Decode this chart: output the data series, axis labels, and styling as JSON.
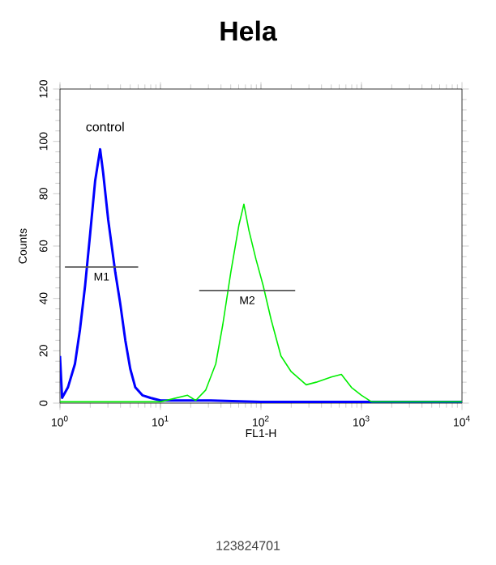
{
  "chart_data": {
    "type": "line",
    "title": "Hela",
    "xlabel": "FL1-H",
    "ylabel": "Counts",
    "log": "x",
    "marker": "none",
    "line_style": "solid",
    "grid": false,
    "xlim": [
      1,
      10000
    ],
    "xticks": [
      {
        "value": 1,
        "label": "10$^{0}$"
      },
      {
        "value": 10,
        "label": "10$^{1}$"
      },
      {
        "value": 100,
        "label": "10$^{2}$"
      },
      {
        "value": 1000,
        "label": "10$^{3}$"
      },
      {
        "value": 10000,
        "label": "10$^{4}$"
      }
    ],
    "ylim": [
      0,
      120
    ],
    "yticks": [
      0,
      20,
      40,
      60,
      80,
      100,
      120
    ],
    "annotations": [
      "control",
      "123824701"
    ],
    "series": [
      {
        "color": "#0000ff",
        "x": [
          1,
          1.05,
          1.2,
          1.41,
          1.58,
          1.78,
          2.0,
          2.24,
          2.51,
          2.69,
          3.02,
          3.55,
          3.98,
          4.47,
          5.01,
          5.62,
          6.61,
          7.94,
          10,
          31.6,
          100,
          1000,
          10000
        ],
        "values": [
          18,
          2,
          6,
          15,
          28,
          45,
          65,
          85,
          97,
          88,
          70,
          50,
          38,
          24,
          13,
          6,
          3,
          2,
          1,
          1,
          0.5,
          0.5,
          0.5
        ]
      },
      {
        "color": "#00ee00",
        "x": [
          1,
          10,
          18.6,
          22.4,
          28.2,
          35.5,
          41.7,
          50.1,
          60.3,
          67.6,
          75.9,
          89.1,
          105,
          126,
          158,
          200,
          282,
          355,
          501,
          631,
          794,
          1000,
          1259,
          10000
        ],
        "values": [
          0.5,
          0.5,
          3,
          1,
          5,
          15,
          30,
          50,
          68,
          76,
          66,
          55,
          45,
          32,
          18,
          12,
          7,
          8,
          10,
          11,
          6,
          3,
          0.5,
          0.5
        ]
      },
      {
        "type": "line",
        "name": "M1",
        "color": "#555555",
        "x": [
          1.12,
          6.0
        ],
        "values": [
          52,
          52
        ]
      },
      {
        "type": "line",
        "name": "M2",
        "color": "#555555",
        "x": [
          24.3,
          219
        ],
        "values": [
          43,
          43
        ]
      }
    ]
  }
}
